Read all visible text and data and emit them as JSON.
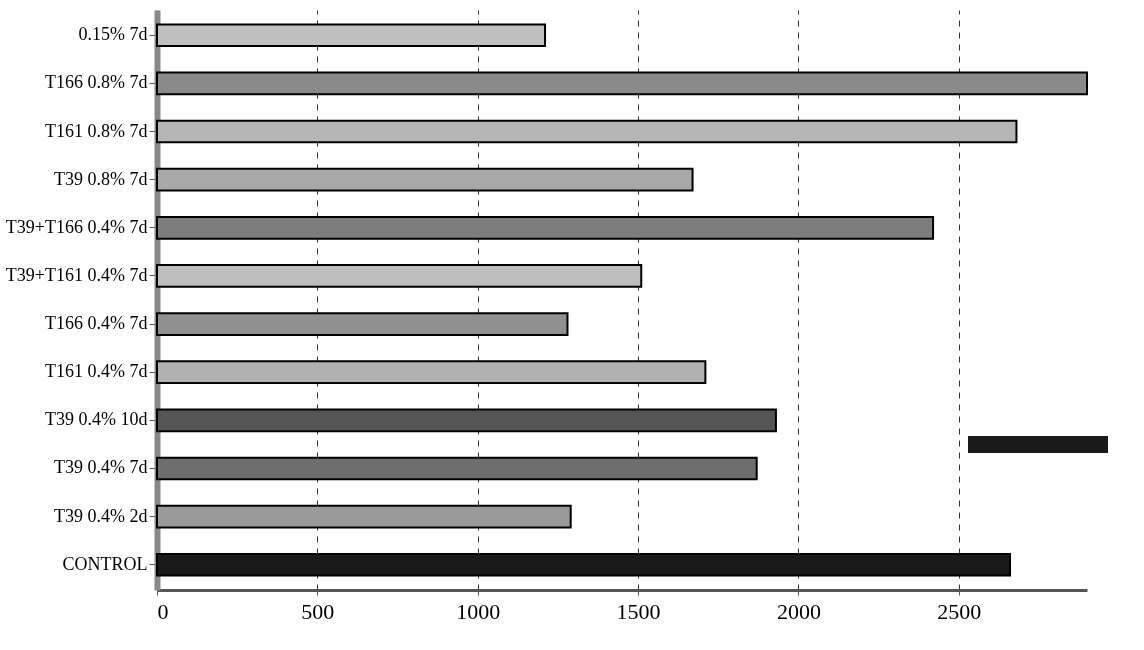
{
  "chart_data": {
    "type": "bar",
    "orientation": "horizontal",
    "categories": [
      "0.15% 7d",
      "T166 0.8% 7d",
      "T161 0.8% 7d",
      "T39 0.8% 7d",
      "T39+T166 0.4% 7d",
      "T39+T161 0.4% 7d",
      "T166 0.4% 7d",
      "T161 0.4% 7d",
      "T39 0.4% 10d",
      "T39 0.4% 7d",
      "T39 0.4% 2d",
      "CONTROL"
    ],
    "values": [
      1210,
      2900,
      2680,
      1670,
      2420,
      1510,
      1280,
      1710,
      1930,
      1870,
      1290,
      2660
    ],
    "colors": [
      "#c0c0c0",
      "#8a8a8a",
      "#b5b5b5",
      "#a8a8a8",
      "#7d7d7d",
      "#bdbdbd",
      "#909090",
      "#b0b0b0",
      "#555555",
      "#6e6e6e",
      "#9a9a9a",
      "#1a1a1a"
    ],
    "xlim": [
      0,
      2900
    ],
    "xticks": [
      0,
      500,
      1000,
      1500,
      2000,
      2500
    ],
    "grid": "x",
    "legend": false
  }
}
